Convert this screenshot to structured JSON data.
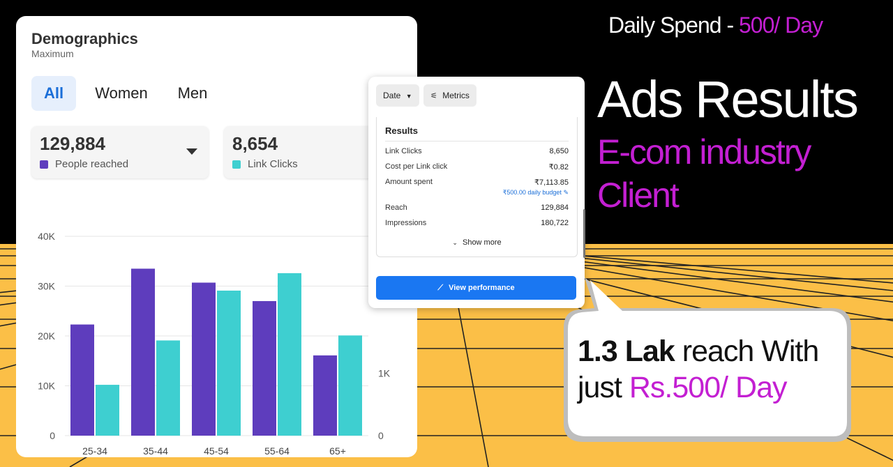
{
  "header": {
    "daily_prefix": "Daily Spend - ",
    "daily_amount": "500/ Day",
    "title": "Ads Results",
    "industry_line1": "E-com industry",
    "industry_line2": "Client"
  },
  "callout": {
    "bold": "1.3 Lak",
    "text1": " reach With",
    "text2": "just ",
    "highlight": "Rs.500/ Day"
  },
  "demographics": {
    "title": "Demographics",
    "subtitle": "Maximum",
    "tabs": [
      "All",
      "Women",
      "Men"
    ],
    "stats": [
      {
        "value": "129,884",
        "label": "People reached",
        "color": "#5e3dbd"
      },
      {
        "value": "8,654",
        "label": "Link Clicks",
        "color": "#3ecfd0"
      }
    ]
  },
  "chart_data": {
    "type": "bar",
    "categories": [
      "25-34",
      "35-44",
      "45-54",
      "55-64",
      "65+"
    ],
    "series": [
      {
        "name": "People reached",
        "color": "#5e3dbd",
        "values": [
          22300,
          33500,
          30700,
          27000,
          16100
        ]
      },
      {
        "name": "Link Clicks",
        "color": "#3ecfd0",
        "values": [
          10200,
          19100,
          29100,
          32600,
          20100
        ]
      }
    ],
    "y_ticks": [
      "0",
      "10K",
      "20K",
      "30K",
      "40K"
    ],
    "y_tick_values": [
      0,
      10000,
      20000,
      30000,
      40000
    ],
    "ylim": [
      0,
      40000
    ],
    "right_ticks": [
      "0",
      "1K"
    ],
    "grid": true
  },
  "results": {
    "date_label": "Date",
    "metrics_label": "Metrics",
    "title": "Results",
    "rows": [
      {
        "label": "Link Clicks",
        "value": "8,650"
      },
      {
        "label": "Cost per Link click",
        "value": "₹0.82"
      },
      {
        "label": "Amount spent",
        "value": "₹7,113.85",
        "note": "₹500.00 daily budget"
      },
      {
        "label": "Reach",
        "value": "129,884"
      },
      {
        "label": "Impressions",
        "value": "180,722"
      }
    ],
    "show_more": "Show more",
    "view_button": "View performance"
  }
}
